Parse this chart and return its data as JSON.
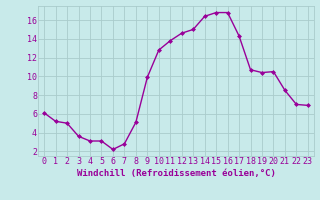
{
  "x": [
    0,
    1,
    2,
    3,
    4,
    5,
    6,
    7,
    8,
    9,
    10,
    11,
    12,
    13,
    14,
    15,
    16,
    17,
    18,
    19,
    20,
    21,
    22,
    23
  ],
  "y": [
    6.1,
    5.2,
    5.0,
    3.6,
    3.1,
    3.1,
    2.2,
    2.8,
    5.1,
    9.9,
    12.8,
    13.8,
    14.6,
    15.0,
    16.4,
    16.8,
    16.8,
    14.3,
    10.7,
    10.4,
    10.5,
    8.5,
    7.0,
    6.9
  ],
  "line_color": "#990099",
  "marker": "D",
  "marker_size": 2.0,
  "bg_color": "#c8eaea",
  "grid_color": "#aacccc",
  "xlabel": "Windchill (Refroidissement éolien,°C)",
  "xlim": [
    -0.5,
    23.5
  ],
  "ylim": [
    1.5,
    17.5
  ],
  "yticks": [
    2,
    4,
    6,
    8,
    10,
    12,
    14,
    16
  ],
  "xticks": [
    0,
    1,
    2,
    3,
    4,
    5,
    6,
    7,
    8,
    9,
    10,
    11,
    12,
    13,
    14,
    15,
    16,
    17,
    18,
    19,
    20,
    21,
    22,
    23
  ],
  "xlabel_fontsize": 6.5,
  "tick_fontsize": 6,
  "line_width": 1.0
}
